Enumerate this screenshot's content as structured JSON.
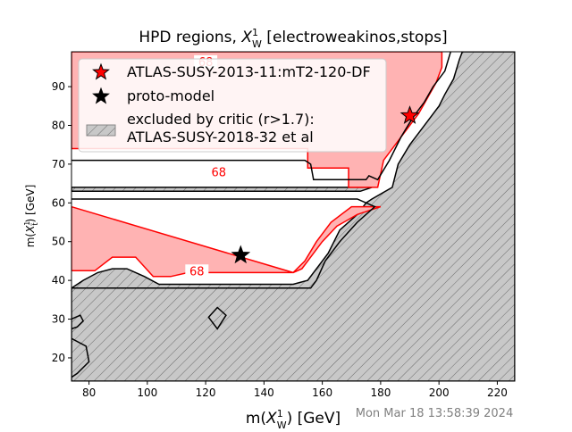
{
  "chart_data": {
    "type": "contour",
    "title": "HPD regions, $X_W^1$ [electroweakinos,stops]",
    "title_parts": {
      "prefix": "HPD regions, ",
      "symbol": "X",
      "sup": "1",
      "sub": "W",
      "suffix": " [electroweakinos,stops]"
    },
    "xlabel": "m($X_W^1$) [GeV]",
    "xlabel_parts": {
      "prefix": "m(",
      "symbol": "X",
      "sup": "1",
      "sub": "W",
      "suffix": ") [GeV]"
    },
    "ylabel": "m($X_{\\tilde{t}}^1$) [GeV]",
    "ylabel_parts": {
      "prefix": "m(",
      "symbol": "X",
      "sup": "1",
      "sub": "t̃",
      "suffix": ") [GeV]"
    },
    "xlim": [
      74,
      226
    ],
    "ylim": [
      14,
      99
    ],
    "xticks": [
      80,
      100,
      120,
      140,
      160,
      180,
      200,
      220
    ],
    "yticks": [
      20,
      30,
      40,
      50,
      60,
      70,
      80,
      90
    ],
    "grid": false,
    "legend_position": "upper-left",
    "legend": [
      {
        "label": "ATLAS-SUSY-2013-11:mT2-120-DF",
        "marker": "star",
        "color": "#ff0000"
      },
      {
        "label": "proto-model",
        "marker": "star",
        "color": "#000000"
      },
      {
        "label": "excluded by critic (r>1.7):",
        "label2": "ATLAS-SUSY-2018-32 et al",
        "marker": "hatch-patch",
        "color": "#c8c8c8"
      }
    ],
    "contour_labels": [
      {
        "text": "68",
        "x": 120,
        "y": 96.5
      },
      {
        "text": "68",
        "x": 124.5,
        "y": 68
      },
      {
        "text": "68",
        "x": 117,
        "y": 42.5
      }
    ],
    "points": [
      {
        "name": "ATLAS-SUSY-2013-11:mT2-120-DF",
        "x": 190,
        "y": 82.5,
        "color": "#ff0000"
      },
      {
        "name": "proto-model",
        "x": 132,
        "y": 46.5,
        "color": "#000000"
      }
    ],
    "hpd_regions": [
      {
        "level": "68",
        "fill": "#ffb3b3",
        "edge": "#ff0000",
        "points": [
          [
            74,
            99
          ],
          [
            74,
            74
          ],
          [
            155,
            74
          ],
          [
            155,
            69
          ],
          [
            169,
            69
          ],
          [
            169,
            64
          ],
          [
            179,
            64
          ],
          [
            181,
            71
          ],
          [
            188,
            78
          ],
          [
            193,
            83
          ],
          [
            196,
            87
          ],
          [
            199,
            91
          ],
          [
            201,
            95
          ],
          [
            201,
            99
          ]
        ]
      },
      {
        "level": "68",
        "fill": "#ffb3b3",
        "edge": "#ff0000",
        "points": [
          [
            74,
            59
          ],
          [
            74,
            42.5
          ],
          [
            82,
            42.5
          ],
          [
            88,
            46
          ],
          [
            96,
            46
          ],
          [
            102,
            41
          ],
          [
            108,
            41
          ],
          [
            114,
            42
          ],
          [
            150,
            42
          ],
          [
            154,
            45
          ],
          [
            158,
            50
          ],
          [
            163,
            55
          ],
          [
            170,
            59
          ],
          [
            180,
            59
          ],
          [
            172,
            57
          ],
          [
            165,
            54
          ],
          [
            160,
            50
          ],
          [
            156,
            46
          ],
          [
            153,
            43
          ],
          [
            150,
            42
          ]
        ]
      }
    ],
    "excluded_regions": [
      {
        "fill": "#c8c8c8",
        "edge": "#000000",
        "points": [
          [
            74,
            14
          ],
          [
            74,
            25
          ],
          [
            79,
            23
          ],
          [
            80,
            19
          ],
          [
            76,
            16
          ],
          [
            74,
            15
          ],
          [
            74,
            38
          ],
          [
            78,
            40
          ],
          [
            83,
            42
          ],
          [
            88,
            43
          ],
          [
            93,
            43
          ],
          [
            96,
            42
          ],
          [
            99,
            41
          ],
          [
            104,
            39
          ],
          [
            150,
            39
          ],
          [
            155,
            40
          ],
          [
            162,
            47
          ],
          [
            166,
            53
          ],
          [
            172,
            57
          ],
          [
            175,
            60
          ],
          [
            177,
            61
          ],
          [
            184,
            64
          ],
          [
            186,
            70
          ],
          [
            190,
            75
          ],
          [
            193,
            78
          ],
          [
            197,
            82
          ],
          [
            200,
            85
          ],
          [
            202,
            88
          ],
          [
            205,
            92
          ],
          [
            207,
            97
          ],
          [
            208,
            99
          ],
          [
            226,
            99
          ],
          [
            226,
            14
          ]
        ]
      },
      {
        "fill": "#c8c8c8",
        "edge": "#000000",
        "points": [
          [
            74,
            64
          ],
          [
            74,
            63
          ],
          [
            173,
            63
          ],
          [
            177,
            64
          ],
          [
            74,
            64
          ]
        ]
      },
      {
        "fill": "#c8c8c8",
        "edge": "#000000",
        "points": [
          [
            74,
            30
          ],
          [
            77,
            31
          ],
          [
            78,
            29.5
          ],
          [
            76,
            28
          ],
          [
            74,
            27.5
          ]
        ]
      },
      {
        "fill": "#c8c8c8",
        "edge": "#000000",
        "points": [
          [
            121,
            30.5
          ],
          [
            124,
            33
          ],
          [
            127,
            31
          ],
          [
            124,
            27.5
          ]
        ]
      }
    ],
    "boundary_lines": [
      {
        "color": "#000000",
        "points": [
          [
            74,
            71
          ],
          [
            154,
            71
          ],
          [
            156,
            70
          ],
          [
            157,
            66
          ],
          [
            175,
            66
          ],
          [
            176,
            67
          ],
          [
            179,
            66
          ],
          [
            183,
            71
          ],
          [
            187,
            77
          ],
          [
            191,
            82
          ],
          [
            195,
            86
          ],
          [
            198,
            90
          ],
          [
            202,
            94
          ],
          [
            204,
            99
          ]
        ]
      },
      {
        "color": "#000000",
        "points": [
          [
            74,
            61
          ],
          [
            172,
            61
          ],
          [
            178,
            59
          ],
          [
            172,
            55
          ],
          [
            166,
            50
          ],
          [
            161,
            45
          ],
          [
            158,
            40
          ],
          [
            156,
            38
          ],
          [
            74,
            38
          ]
        ]
      }
    ]
  },
  "timestamp": "Mon Mar 18 13:58:39 2024"
}
